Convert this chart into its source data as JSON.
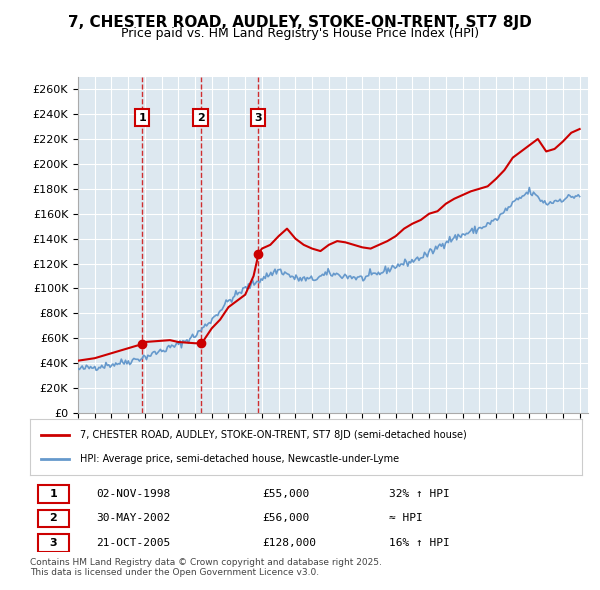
{
  "title": "7, CHESTER ROAD, AUDLEY, STOKE-ON-TRENT, ST7 8JD",
  "subtitle": "Price paid vs. HM Land Registry's House Price Index (HPI)",
  "ylabel_ticks": [
    "£0",
    "£20K",
    "£40K",
    "£60K",
    "£80K",
    "£100K",
    "£120K",
    "£140K",
    "£160K",
    "£180K",
    "£200K",
    "£220K",
    "£240K",
    "£260K"
  ],
  "ylim": [
    0,
    270000
  ],
  "sale_dates": [
    "1998-11-02",
    "2002-05-30",
    "2005-10-21"
  ],
  "sale_prices": [
    55000,
    56000,
    128000
  ],
  "sale_labels": [
    "1",
    "2",
    "3"
  ],
  "sale_date_strs": [
    "02-NOV-1998",
    "30-MAY-2002",
    "21-OCT-2005"
  ],
  "sale_price_strs": [
    "£55,000",
    "£56,000",
    "£128,000"
  ],
  "sale_hpi_strs": [
    "32% ↑ HPI",
    "≈ HPI",
    "16% ↑ HPI"
  ],
  "legend_line1": "7, CHESTER ROAD, AUDLEY, STOKE-ON-TRENT, ST7 8JD (semi-detached house)",
  "legend_line2": "HPI: Average price, semi-detached house, Newcastle-under-Lyme",
  "footnote": "Contains HM Land Registry data © Crown copyright and database right 2025.\nThis data is licensed under the Open Government Licence v3.0.",
  "line_color_red": "#cc0000",
  "line_color_blue": "#6699cc",
  "bg_color": "#dde8f0",
  "grid_color": "#ffffff",
  "box_color": "#cc0000"
}
